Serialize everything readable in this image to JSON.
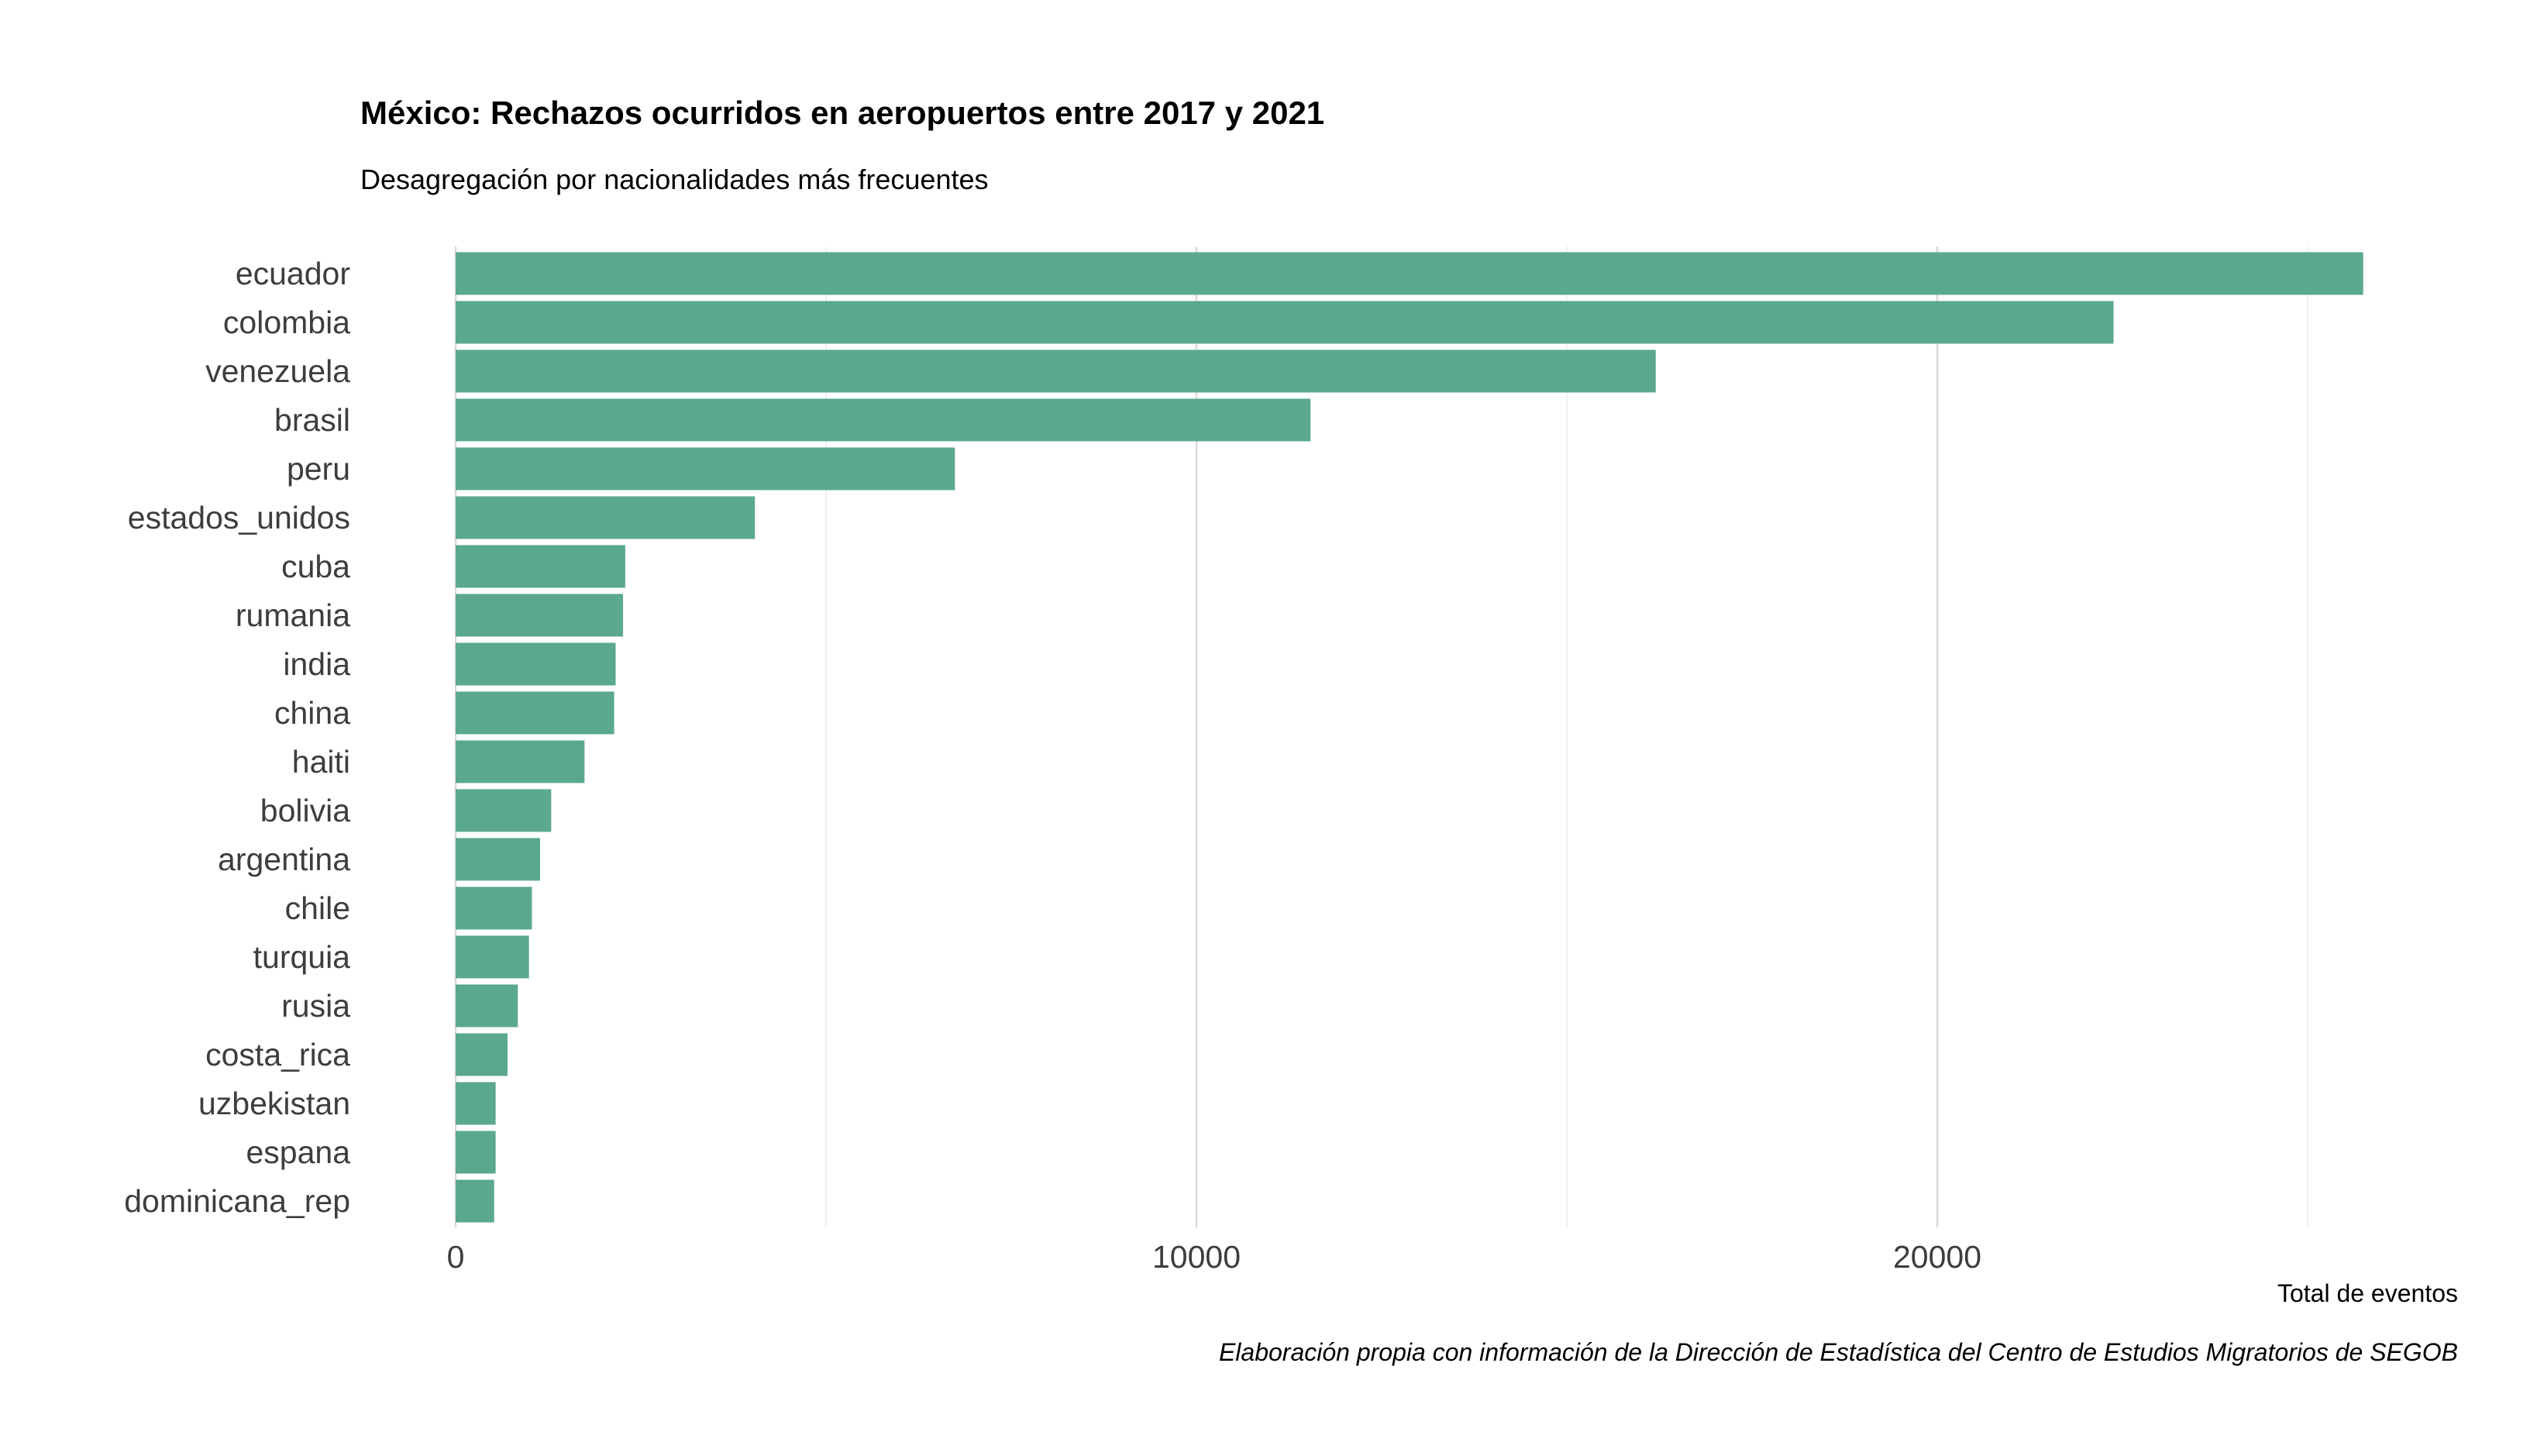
{
  "chart_data": {
    "type": "bar",
    "orientation": "horizontal",
    "title": "México: Rechazos ocurridos en aeropuertos entre 2017 y 2021",
    "subtitle": "Desagregación por nacionalidades más frecuentes",
    "xlabel": "Total de eventos",
    "ylabel": "",
    "caption": "Elaboración propia con información de la Dirección de Estadística del Centro de Estudios Migratorios de SEGOB",
    "categories": [
      "ecuador",
      "colombia",
      "venezuela",
      "brasil",
      "peru",
      "estados_unidos",
      "cuba",
      "rumania",
      "india",
      "china",
      "haiti",
      "bolivia",
      "argentina",
      "chile",
      "turquia",
      "rusia",
      "costa_rica",
      "uzbekistan",
      "espana",
      "dominicana_rep"
    ],
    "values": [
      25750,
      22380,
      16200,
      11540,
      6740,
      4040,
      2290,
      2260,
      2160,
      2140,
      1740,
      1290,
      1140,
      1030,
      990,
      840,
      700,
      540,
      540,
      520
    ],
    "xticks": [
      0,
      10000,
      20000
    ],
    "xtick_labels": [
      "0",
      "10000",
      "20000"
    ],
    "xlim": [
      0,
      26500
    ],
    "bar_color": "#5aa890",
    "grid": true
  }
}
